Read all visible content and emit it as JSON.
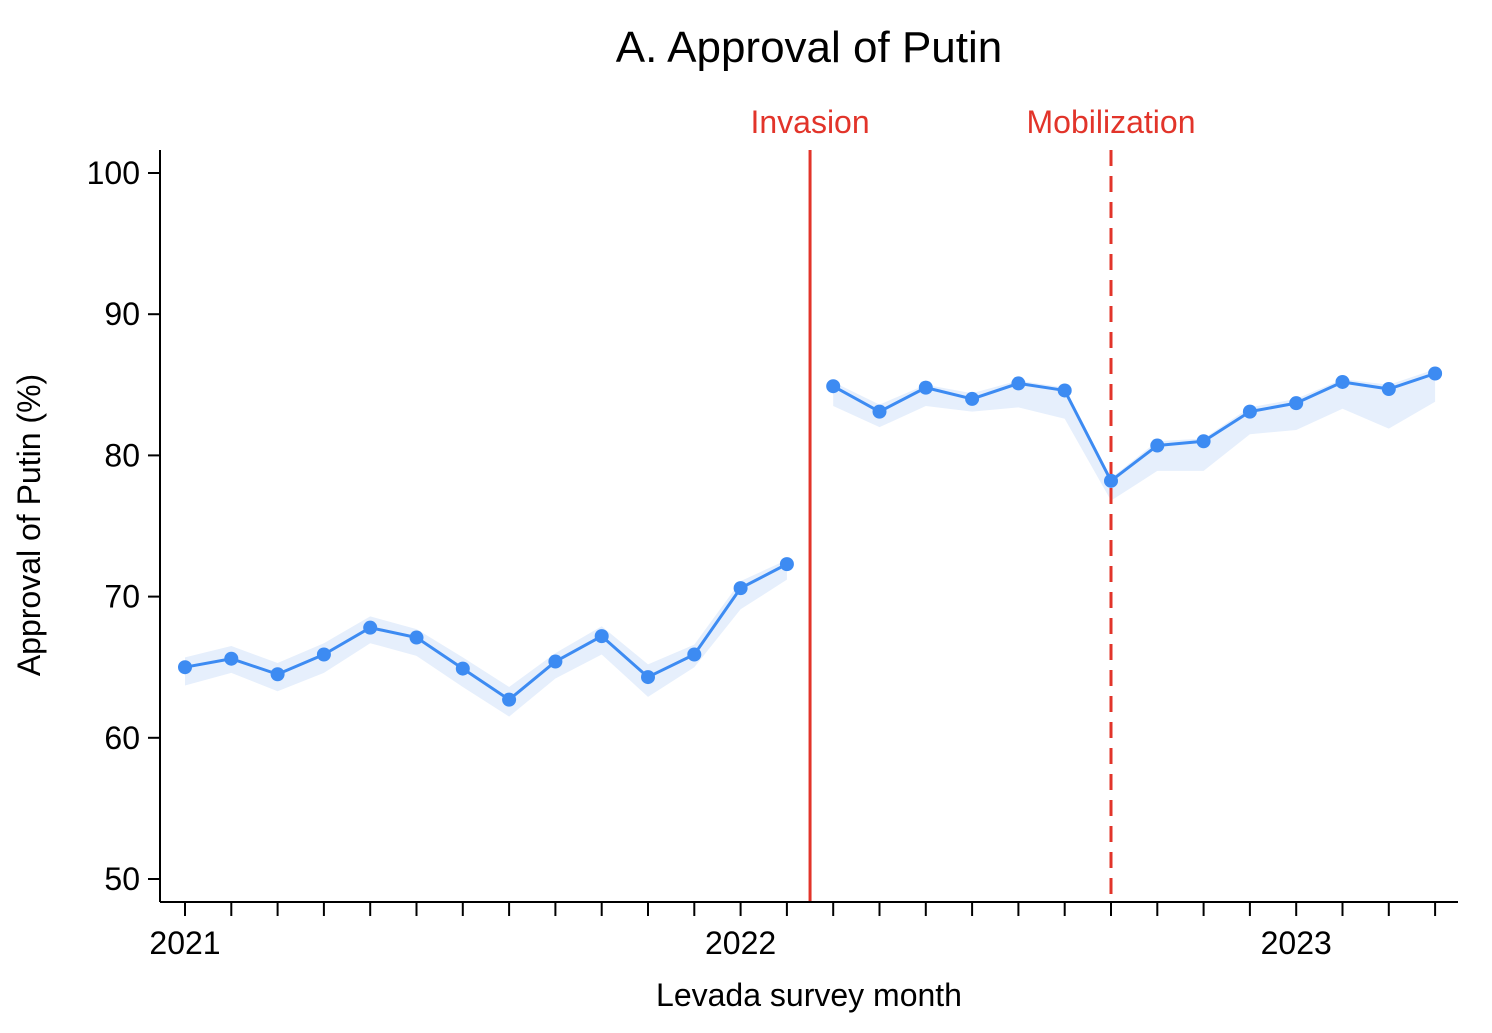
{
  "colors": {
    "series": "#3d8bf2",
    "band": "#e6effc",
    "event": "#e2342a",
    "axis": "#000000"
  },
  "chart_data": {
    "type": "line",
    "title": "A. Approval of Putin",
    "xlabel": "Levada survey month",
    "ylabel": "Approval of Putin (%)",
    "ylim": [
      48.5,
      101.5
    ],
    "yticks": [
      50,
      60,
      70,
      80,
      90,
      100
    ],
    "xtick_labels": [
      {
        "index": 0,
        "label": "2021"
      },
      {
        "index": 12,
        "label": "2022"
      },
      {
        "index": 24,
        "label": "2023"
      }
    ],
    "x_index_range": [
      -0.5,
      27.5
    ],
    "minor_tick_count": 28,
    "events": [
      {
        "label": "Invasion",
        "index": 13.5,
        "style": "solid"
      },
      {
        "label": "Mobilization",
        "index": 20,
        "style": "dashed"
      }
    ],
    "series": [
      {
        "name": "Approval",
        "segments": [
          {
            "x": [
              0,
              1,
              2,
              3,
              4,
              5,
              6,
              7,
              8,
              9,
              10,
              11,
              12,
              13
            ],
            "values": [
              65.0,
              65.6,
              64.5,
              65.9,
              67.8,
              67.1,
              64.9,
              62.7,
              65.4,
              67.2,
              64.3,
              65.9,
              70.6,
              72.3
            ],
            "lower": [
              63.7,
              64.6,
              63.3,
              64.6,
              66.7,
              65.8,
              63.6,
              61.5,
              64.2,
              65.9,
              62.9,
              65.0,
              69.1,
              71.2
            ],
            "upper": [
              65.7,
              66.5,
              65.3,
              66.7,
              68.6,
              67.7,
              65.7,
              63.6,
              66.0,
              67.9,
              65.2,
              66.6,
              71.1,
              72.6
            ]
          },
          {
            "x": [
              14,
              15,
              16,
              17,
              18,
              19,
              20,
              21,
              22,
              23,
              24,
              25,
              26,
              27
            ],
            "values": [
              84.9,
              83.1,
              84.8,
              84.0,
              85.1,
              84.6,
              78.2,
              80.7,
              81.0,
              83.1,
              83.7,
              85.2,
              84.7,
              85.8
            ],
            "lower": [
              83.5,
              82.0,
              83.5,
              83.1,
              83.4,
              82.6,
              76.8,
              78.9,
              78.9,
              81.5,
              81.8,
              83.3,
              81.9,
              83.8
            ],
            "upper": [
              85.2,
              83.6,
              85.0,
              84.4,
              85.3,
              84.8,
              78.4,
              81.0,
              81.2,
              83.4,
              84.0,
              85.4,
              85.0,
              86.1
            ]
          }
        ]
      }
    ]
  }
}
